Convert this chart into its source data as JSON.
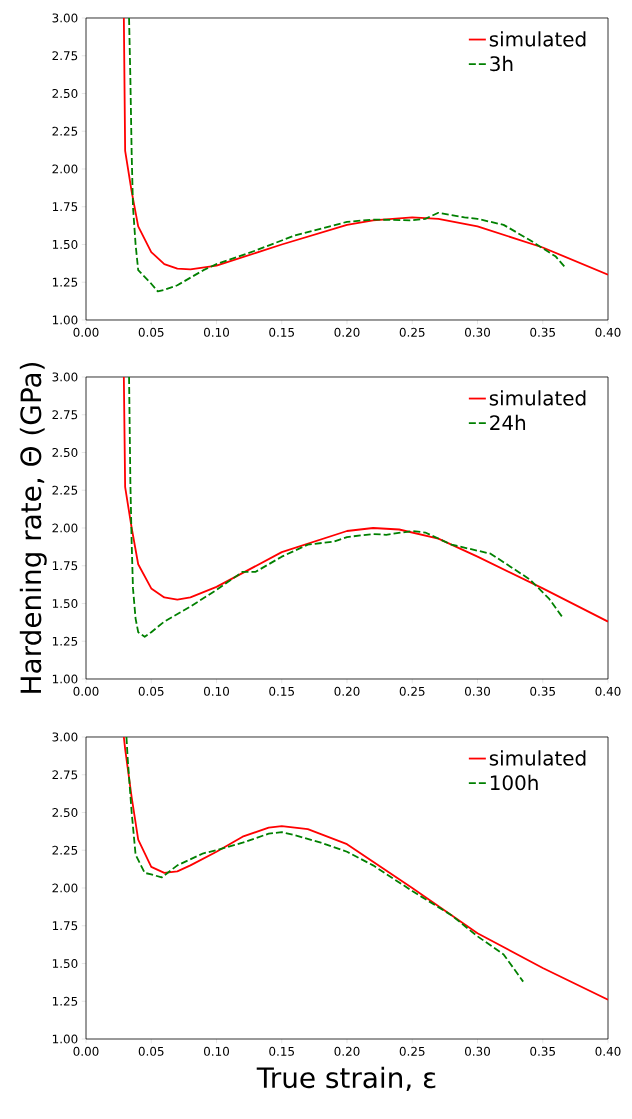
{
  "chart_data": [
    {
      "type": "line",
      "xlim": [
        0,
        0.4
      ],
      "ylim": [
        1,
        3
      ],
      "legend": "top right",
      "xticks": [
        {
          "value": 0,
          "label": "0.00"
        },
        {
          "value": 0.05,
          "label": "0.05"
        },
        {
          "value": 0.1,
          "label": "0.10"
        },
        {
          "value": 0.15,
          "label": "0.15"
        },
        {
          "value": 0.2,
          "label": "0.20"
        },
        {
          "value": 0.25,
          "label": "0.25"
        },
        {
          "value": 0.3,
          "label": "0.30"
        },
        {
          "value": 0.35,
          "label": "0.35"
        },
        {
          "value": 0.4,
          "label": "0.40"
        }
      ],
      "yticks": [
        {
          "value": 1,
          "label": "1.00"
        },
        {
          "value": 1.25,
          "label": "1.25"
        },
        {
          "value": 1.5,
          "label": "1.50"
        },
        {
          "value": 1.75,
          "label": "1.75"
        },
        {
          "value": 2,
          "label": "2.00"
        },
        {
          "value": 2.25,
          "label": "2.25"
        },
        {
          "value": 2.5,
          "label": "2.50"
        },
        {
          "value": 2.75,
          "label": "2.75"
        },
        {
          "value": 3,
          "label": "3.00"
        }
      ],
      "series": [
        {
          "name": "simulated",
          "color": "#ff0000",
          "line_style": "solid",
          "x": [
            0.029,
            0.03,
            0.035,
            0.04,
            0.05,
            0.06,
            0.07,
            0.08,
            0.1,
            0.15,
            0.2,
            0.22,
            0.25,
            0.27,
            0.3,
            0.35,
            0.4
          ],
          "values": [
            3.0,
            2.12,
            1.85,
            1.62,
            1.45,
            1.37,
            1.34,
            1.335,
            1.36,
            1.5,
            1.63,
            1.66,
            1.68,
            1.67,
            1.62,
            1.48,
            1.3
          ]
        },
        {
          "name": "3h",
          "color": "#008000",
          "line_style": "dashed",
          "x": [
            0.033,
            0.034,
            0.035,
            0.036,
            0.038,
            0.04,
            0.05,
            0.055,
            0.06,
            0.07,
            0.08,
            0.09,
            0.1,
            0.13,
            0.16,
            0.2,
            0.22,
            0.25,
            0.26,
            0.27,
            0.29,
            0.3,
            0.32,
            0.34,
            0.36,
            0.368
          ],
          "values": [
            3.0,
            2.6,
            2.1,
            1.75,
            1.5,
            1.33,
            1.24,
            1.19,
            1.2,
            1.23,
            1.28,
            1.33,
            1.37,
            1.46,
            1.56,
            1.65,
            1.665,
            1.66,
            1.67,
            1.71,
            1.68,
            1.67,
            1.63,
            1.53,
            1.42,
            1.34
          ]
        }
      ]
    },
    {
      "type": "line",
      "xlim": [
        0,
        0.4
      ],
      "ylim": [
        1,
        3
      ],
      "legend": "top right",
      "ylabel": "Hardening rate, Θ (GPa)",
      "xticks": [
        {
          "value": 0,
          "label": "0.00"
        },
        {
          "value": 0.05,
          "label": "0.05"
        },
        {
          "value": 0.1,
          "label": "0.10"
        },
        {
          "value": 0.15,
          "label": "0.15"
        },
        {
          "value": 0.2,
          "label": "0.20"
        },
        {
          "value": 0.25,
          "label": "0.25"
        },
        {
          "value": 0.3,
          "label": "0.30"
        },
        {
          "value": 0.35,
          "label": "0.35"
        },
        {
          "value": 0.4,
          "label": "0.40"
        }
      ],
      "yticks": [
        {
          "value": 1,
          "label": "1.00"
        },
        {
          "value": 1.25,
          "label": "1.25"
        },
        {
          "value": 1.5,
          "label": "1.50"
        },
        {
          "value": 1.75,
          "label": "1.75"
        },
        {
          "value": 2,
          "label": "2.00"
        },
        {
          "value": 2.25,
          "label": "2.25"
        },
        {
          "value": 2.5,
          "label": "2.50"
        },
        {
          "value": 2.75,
          "label": "2.75"
        },
        {
          "value": 3,
          "label": "3.00"
        }
      ],
      "series": [
        {
          "name": "simulated",
          "color": "#ff0000",
          "line_style": "solid",
          "x": [
            0.029,
            0.03,
            0.035,
            0.04,
            0.05,
            0.06,
            0.07,
            0.08,
            0.1,
            0.15,
            0.2,
            0.22,
            0.24,
            0.27,
            0.3,
            0.35,
            0.4
          ],
          "values": [
            3.0,
            2.27,
            2.0,
            1.76,
            1.6,
            1.54,
            1.525,
            1.54,
            1.61,
            1.84,
            1.98,
            2.0,
            1.99,
            1.93,
            1.81,
            1.6,
            1.38
          ]
        },
        {
          "name": "24h",
          "color": "#008000",
          "line_style": "dashed",
          "x": [
            0.033,
            0.034,
            0.035,
            0.036,
            0.038,
            0.04,
            0.045,
            0.05,
            0.06,
            0.08,
            0.1,
            0.12,
            0.13,
            0.15,
            0.17,
            0.19,
            0.2,
            0.22,
            0.23,
            0.25,
            0.26,
            0.28,
            0.3,
            0.31,
            0.34,
            0.355,
            0.365
          ],
          "values": [
            3.0,
            2.3,
            1.9,
            1.6,
            1.4,
            1.31,
            1.28,
            1.31,
            1.38,
            1.48,
            1.59,
            1.71,
            1.71,
            1.81,
            1.89,
            1.91,
            1.94,
            1.96,
            1.955,
            1.98,
            1.97,
            1.89,
            1.85,
            1.83,
            1.66,
            1.53,
            1.41
          ]
        }
      ]
    },
    {
      "type": "line",
      "xlim": [
        0,
        0.4
      ],
      "ylim": [
        1,
        3
      ],
      "legend": "top right",
      "xlabel": "True strain, ε",
      "xticks": [
        {
          "value": 0,
          "label": "0.00"
        },
        {
          "value": 0.05,
          "label": "0.05"
        },
        {
          "value": 0.1,
          "label": "0.10"
        },
        {
          "value": 0.15,
          "label": "0.15"
        },
        {
          "value": 0.2,
          "label": "0.20"
        },
        {
          "value": 0.25,
          "label": "0.25"
        },
        {
          "value": 0.3,
          "label": "0.30"
        },
        {
          "value": 0.35,
          "label": "0.35"
        },
        {
          "value": 0.4,
          "label": "0.40"
        }
      ],
      "yticks": [
        {
          "value": 1,
          "label": "1.00"
        },
        {
          "value": 1.25,
          "label": "1.25"
        },
        {
          "value": 1.5,
          "label": "1.50"
        },
        {
          "value": 1.75,
          "label": "1.75"
        },
        {
          "value": 2,
          "label": "2.00"
        },
        {
          "value": 2.25,
          "label": "2.25"
        },
        {
          "value": 2.5,
          "label": "2.50"
        },
        {
          "value": 2.75,
          "label": "2.75"
        },
        {
          "value": 3,
          "label": "3.00"
        }
      ],
      "series": [
        {
          "name": "simulated",
          "color": "#ff0000",
          "line_style": "solid",
          "x": [
            0.029,
            0.03,
            0.035,
            0.04,
            0.05,
            0.06,
            0.07,
            0.08,
            0.1,
            0.12,
            0.14,
            0.15,
            0.17,
            0.2,
            0.25,
            0.3,
            0.35,
            0.4
          ],
          "values": [
            3.0,
            2.92,
            2.6,
            2.32,
            2.14,
            2.1,
            2.11,
            2.15,
            2.24,
            2.34,
            2.4,
            2.41,
            2.39,
            2.29,
            2.0,
            1.7,
            1.47,
            1.26
          ]
        },
        {
          "name": "100h",
          "color": "#008000",
          "line_style": "dashed",
          "x": [
            0.031,
            0.032,
            0.035,
            0.038,
            0.045,
            0.05,
            0.058,
            0.07,
            0.09,
            0.1,
            0.12,
            0.14,
            0.15,
            0.16,
            0.18,
            0.2,
            0.22,
            0.25,
            0.28,
            0.3,
            0.32,
            0.335
          ],
          "values": [
            3.0,
            2.85,
            2.5,
            2.22,
            2.1,
            2.09,
            2.07,
            2.15,
            2.23,
            2.25,
            2.3,
            2.36,
            2.37,
            2.35,
            2.3,
            2.24,
            2.15,
            1.98,
            1.82,
            1.68,
            1.56,
            1.38
          ]
        }
      ]
    }
  ]
}
